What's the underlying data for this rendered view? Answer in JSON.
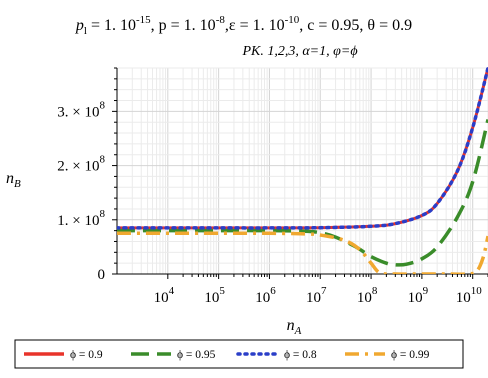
{
  "chart_data": {
    "type": "line",
    "title_parts": [
      {
        "t": "p",
        "s": "i"
      },
      {
        "t": "l",
        "s": "sub"
      },
      {
        "t": " = 1. 10",
        "s": "n"
      },
      {
        "t": "-15",
        "s": "sup"
      },
      {
        "t": ", p = 1. 10",
        "s": "n"
      },
      {
        "t": "-8",
        "s": "sup"
      },
      {
        "t": ",ε = 1. 10",
        "s": "n"
      },
      {
        "t": "-10",
        "s": "sup"
      },
      {
        "t": ", c = 0.95, θ = 0.9",
        "s": "n"
      }
    ],
    "subtitle": "PK. 1,2,3,  α=1, φ=ϕ",
    "xlabel": {
      "main": "n",
      "sub": "A"
    },
    "ylabel": {
      "main": "n",
      "sub": "B"
    },
    "x_scale": "log",
    "xlim": [
      1000,
      20000000000
    ],
    "ylim": [
      0,
      380000000
    ],
    "xticks": [
      {
        "value": 10000,
        "base": "10",
        "exp": "4"
      },
      {
        "value": 100000,
        "base": "10",
        "exp": "5"
      },
      {
        "value": 1000000,
        "base": "10",
        "exp": "6"
      },
      {
        "value": 10000000,
        "base": "10",
        "exp": "7"
      },
      {
        "value": 100000000,
        "base": "10",
        "exp": "8"
      },
      {
        "value": 1000000000,
        "base": "10",
        "exp": "9"
      },
      {
        "value": 10000000000,
        "base": "10",
        "exp": "10"
      }
    ],
    "yticks": [
      {
        "value": 0,
        "label": "0",
        "exp": ""
      },
      {
        "value": 100000000,
        "label": "1. × 10",
        "exp": "8"
      },
      {
        "value": 200000000,
        "label": "2. × 10",
        "exp": "8"
      },
      {
        "value": 300000000,
        "label": "3. × 10",
        "exp": "8"
      }
    ],
    "grid": true,
    "legend_position": "bottom",
    "series": [
      {
        "name": "ϕ = 0.9",
        "color": "#e8332a",
        "dash": "solid",
        "x": [
          1000,
          10000,
          100000,
          1000000,
          10000000,
          100000000,
          300000000,
          1000000000,
          2000000000,
          5000000000,
          10000000000,
          20000000000
        ],
        "y": [
          85000000,
          85000000,
          85000000,
          85000000,
          85500000,
          88000000,
          93000000,
          108000000,
          130000000,
          190000000,
          270000000,
          380000000
        ]
      },
      {
        "name": "ϕ = 0.95",
        "color": "#3a8c2a",
        "dash": "longdash",
        "x": [
          1000,
          10000,
          100000,
          1000000,
          5000000,
          10000000,
          20000000,
          50000000,
          100000000,
          200000000,
          300000000,
          500000000,
          1000000000,
          2000000000,
          5000000000,
          10000000000,
          20000000000
        ],
        "y": [
          80000000,
          80000000,
          80000000,
          80000000,
          79000000,
          76000000,
          68000000,
          50000000,
          32000000,
          20000000,
          17000000,
          18000000,
          28000000,
          50000000,
          105000000,
          170000000,
          285000000
        ]
      },
      {
        "name": "ϕ = 0.8",
        "color": "#2a3ec8",
        "dash": "dot",
        "x": [
          1000,
          10000,
          100000,
          1000000,
          10000000,
          100000000,
          300000000,
          1000000000,
          2000000000,
          5000000000,
          10000000000,
          20000000000
        ],
        "y": [
          85000000,
          85000000,
          85000000,
          85000000,
          85500000,
          88000000,
          93000000,
          108000000,
          130000000,
          190000000,
          270000000,
          380000000
        ]
      },
      {
        "name": "ϕ = 0.99",
        "color": "#f0a830",
        "dash": "dashdot",
        "x": [
          1000,
          10000,
          100000,
          1000000,
          5000000,
          10000000,
          30000000,
          60000000,
          100000000,
          150000000,
          300000000,
          1000000000,
          3000000000,
          8000000000,
          12000000000,
          16000000000,
          20000000000
        ],
        "y": [
          75000000,
          75000000,
          75000000,
          75000000,
          74000000,
          72000000,
          62000000,
          45000000,
          20000000,
          2000000,
          0,
          0,
          0,
          0,
          5000000,
          30000000,
          70000000
        ]
      }
    ]
  }
}
